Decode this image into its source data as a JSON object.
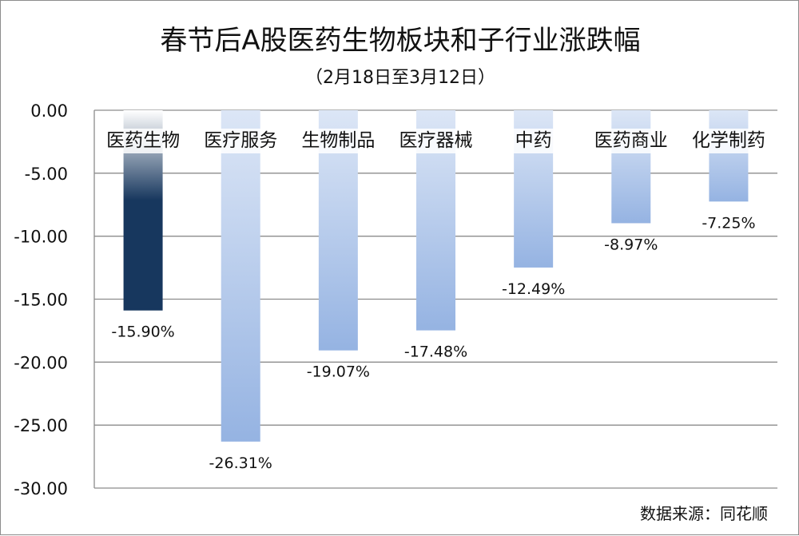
{
  "chart_data": {
    "type": "bar",
    "title": "春节后A股医药生物板块和子行业涨跌幅",
    "subtitle": "（2月18日至3月12日）",
    "categories": [
      "医药生物",
      "医疗服务",
      "生物制品",
      "医疗器械",
      "中药",
      "医药商业",
      "化学制药"
    ],
    "values": [
      -15.9,
      -26.31,
      -19.07,
      -17.48,
      -12.49,
      -8.97,
      -7.25
    ],
    "data_labels": [
      "-15.90%",
      "-26.31%",
      "-19.07%",
      "-17.48%",
      "-12.49%",
      "-8.97%",
      "-7.25%"
    ],
    "ylim": [
      -30,
      0
    ],
    "yticks": [
      0,
      -5,
      -10,
      -15,
      -20,
      -25,
      -30
    ],
    "ytick_labels": [
      "0.00",
      "-5.00",
      "-10.00",
      "-15.00",
      "-20.00",
      "-25.00",
      "-30.00"
    ],
    "grid": true,
    "highlight_index": 0,
    "colors": {
      "highlight": "#17375e",
      "bar": "#95b3e2",
      "bar_light": "#dce6f6",
      "grid": "#8c8c8c",
      "axis": "#333333"
    },
    "source": "数据来源：同花顺"
  }
}
